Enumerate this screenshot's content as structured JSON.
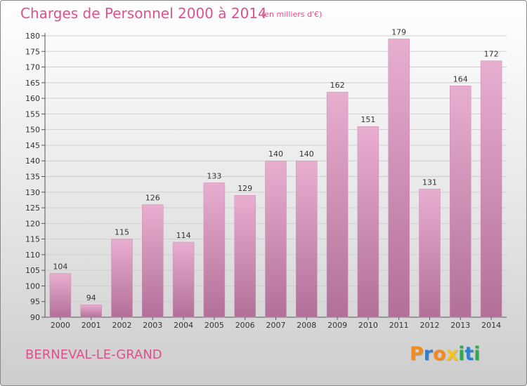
{
  "header": {
    "title": "Charges de Personnel 2000 à 2014",
    "unit": "(en milliers d'€)"
  },
  "footer": {
    "commune": "BERNEVAL-LE-GRAND",
    "logo": [
      "P",
      "r",
      "o",
      "x",
      "i",
      "t",
      "i"
    ]
  },
  "colors": {
    "title": "#e0508e",
    "bar_top": "#e8aed0",
    "bar_bottom": "#b27098",
    "logo": [
      "#f28a1e",
      "#2f80d0",
      "#f28a1e",
      "#f2c21e",
      "#2fa84f",
      "#2f80d0",
      "#2fa84f"
    ]
  },
  "chart_data": {
    "type": "bar",
    "title": "Charges de Personnel 2000 à 2014",
    "categories": [
      "2000",
      "2001",
      "2002",
      "2003",
      "2004",
      "2005",
      "2006",
      "2007",
      "2008",
      "2009",
      "2010",
      "2011",
      "2012",
      "2013",
      "2014"
    ],
    "values": [
      104,
      94,
      115,
      126,
      114,
      133,
      129,
      140,
      140,
      162,
      151,
      179,
      131,
      164,
      172
    ],
    "ylim": [
      90,
      180
    ],
    "yticks": [
      90,
      95,
      100,
      105,
      110,
      115,
      120,
      125,
      130,
      135,
      140,
      145,
      150,
      155,
      160,
      165,
      170,
      175,
      180
    ],
    "grid": true,
    "data_labels": true
  }
}
